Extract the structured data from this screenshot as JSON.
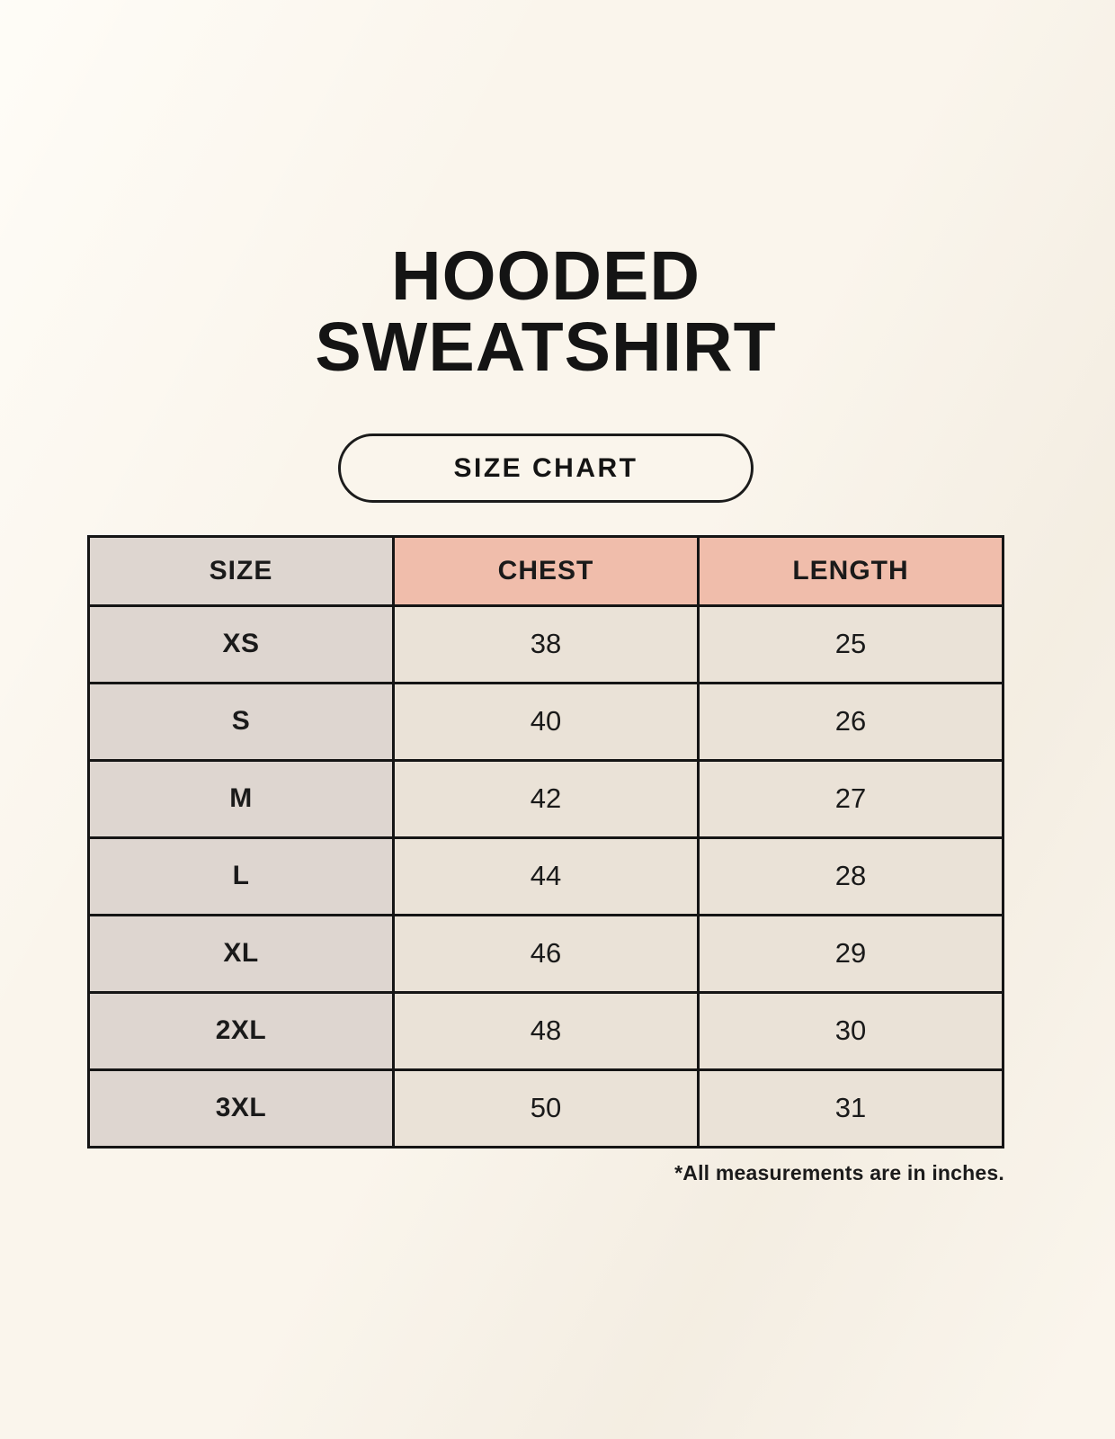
{
  "header": {
    "title_line1": "HOODED",
    "title_line2": "SWEATSHIRT",
    "size_chart_label": "SIZE CHART"
  },
  "footer": {
    "note": "*All measurements are in inches."
  },
  "colors": {
    "page_background": "#faf5ec",
    "header_accent_pink": "#f0bdab",
    "size_column_gray": "#ded6d0",
    "data_cell_cream": "#eae2d7",
    "border_black": "#151515",
    "text_black": "#1a1a1a"
  },
  "chart_data": {
    "type": "table",
    "title": "HOODED SWEATSHIRT",
    "subtitle": "SIZE CHART",
    "columns": [
      "SIZE",
      "CHEST",
      "LENGTH"
    ],
    "rows": [
      [
        "XS",
        "38",
        "25"
      ],
      [
        "S",
        "40",
        "26"
      ],
      [
        "M",
        "42",
        "27"
      ],
      [
        "L",
        "44",
        "28"
      ],
      [
        "XL",
        "46",
        "29"
      ],
      [
        "2XL",
        "48",
        "30"
      ],
      [
        "3XL",
        "50",
        "31"
      ]
    ],
    "units": "inches",
    "footnote": "*All measurements are in inches."
  }
}
